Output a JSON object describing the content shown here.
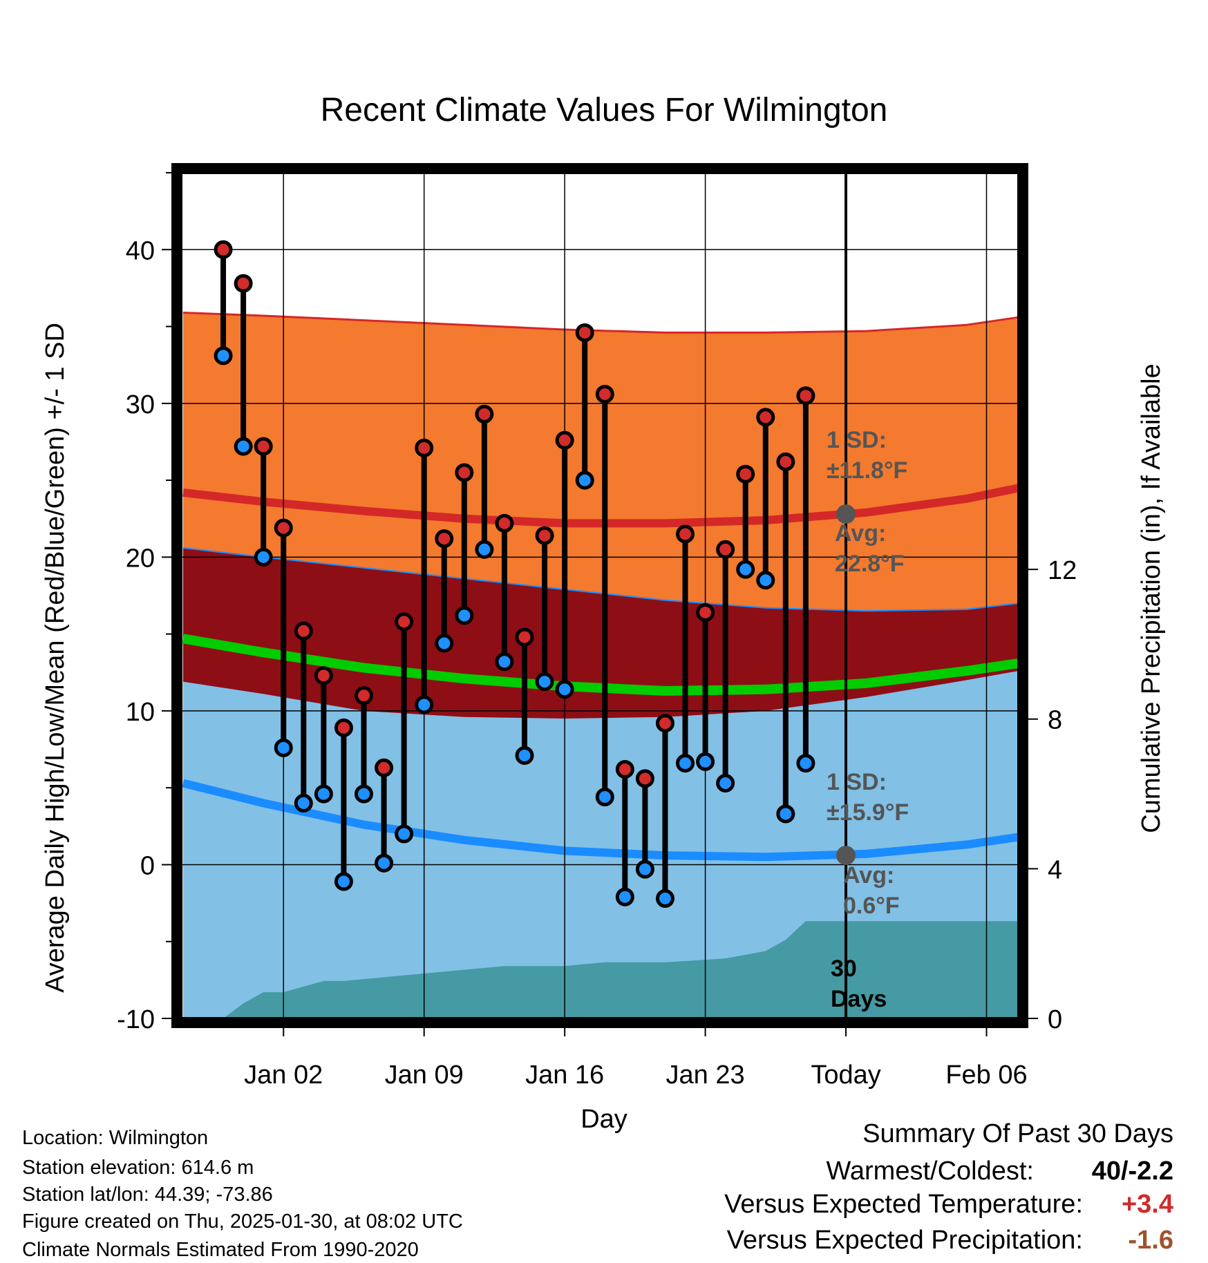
{
  "page": {
    "title": "Recent Climate Values For Wilmington"
  },
  "chart_data": {
    "type": "range",
    "title": "Recent Climate Values For Wilmington",
    "xlabel": "Day",
    "ylabel": "Average Daily High/Low/Mean (Red/Blue/Green) +/- 1 SD",
    "y2label": "Cumulative Precipitation (in), If Available",
    "ylim": [
      -10,
      45
    ],
    "y2lim": [
      0,
      22.6
    ],
    "xlim": [
      -3.1,
      38.6
    ],
    "yticks": [
      -10,
      0,
      10,
      20,
      30,
      40
    ],
    "y2ticks": [
      0,
      4,
      8,
      12
    ],
    "xticks": [
      {
        "day": 2,
        "label": "Jan 02"
      },
      {
        "day": 9,
        "label": "Jan 09"
      },
      {
        "day": 16,
        "label": "Jan 16"
      },
      {
        "day": 23,
        "label": "Jan 23"
      },
      {
        "day": 30,
        "label": "Today"
      },
      {
        "day": 37,
        "label": "Feb 06"
      }
    ],
    "today_day": 30,
    "observed": [
      {
        "day": -1,
        "high": 40.0,
        "low": 33.1
      },
      {
        "day": 0,
        "high": 37.8,
        "low": 27.2
      },
      {
        "day": 1,
        "high": 27.2,
        "low": 20.0
      },
      {
        "day": 2,
        "high": 21.9,
        "low": 7.6
      },
      {
        "day": 3,
        "high": 15.2,
        "low": 4.0
      },
      {
        "day": 4,
        "high": 12.3,
        "low": 4.6
      },
      {
        "day": 5,
        "high": 8.9,
        "low": -1.1
      },
      {
        "day": 6,
        "high": 11.0,
        "low": 4.6
      },
      {
        "day": 7,
        "high": 6.3,
        "low": 0.1
      },
      {
        "day": 8,
        "high": 15.8,
        "low": 2.0
      },
      {
        "day": 9,
        "high": 27.1,
        "low": 10.4
      },
      {
        "day": 10,
        "high": 21.2,
        "low": 14.4
      },
      {
        "day": 11,
        "high": 25.5,
        "low": 16.2
      },
      {
        "day": 12,
        "high": 29.3,
        "low": 20.5
      },
      {
        "day": 13,
        "high": 22.2,
        "low": 13.2
      },
      {
        "day": 14,
        "high": 14.8,
        "low": 7.1
      },
      {
        "day": 15,
        "high": 21.4,
        "low": 11.9
      },
      {
        "day": 16,
        "high": 27.6,
        "low": 11.4
      },
      {
        "day": 17,
        "high": 34.6,
        "low": 25.0
      },
      {
        "day": 18,
        "high": 30.6,
        "low": 4.4
      },
      {
        "day": 19,
        "high": 6.2,
        "low": -2.1
      },
      {
        "day": 20,
        "high": 5.6,
        "low": -0.3
      },
      {
        "day": 21,
        "high": 9.2,
        "low": -2.2
      },
      {
        "day": 22,
        "high": 21.5,
        "low": 6.6
      },
      {
        "day": 23,
        "high": 16.4,
        "low": 6.7
      },
      {
        "day": 24,
        "high": 20.5,
        "low": 5.3
      },
      {
        "day": 25,
        "high": 25.4,
        "low": 19.2
      },
      {
        "day": 26,
        "high": 29.1,
        "low": 18.5
      },
      {
        "day": 27,
        "high": 26.2,
        "low": 3.3
      },
      {
        "day": 28,
        "high": 30.5,
        "low": 6.6
      }
    ],
    "normals": {
      "days": [
        -3,
        1,
        6,
        11,
        16,
        21,
        26,
        31,
        36,
        38.6
      ],
      "high_mean": [
        24.2,
        23.6,
        23.0,
        22.5,
        22.2,
        22.2,
        22.4,
        22.9,
        23.8,
        24.5
      ],
      "high_upper": [
        35.9,
        35.7,
        35.4,
        35.1,
        34.8,
        34.6,
        34.6,
        34.7,
        35.1,
        35.6
      ],
      "high_lower": [
        20.6,
        20.0,
        19.3,
        18.6,
        17.9,
        17.2,
        16.7,
        16.5,
        16.6,
        17.0
      ],
      "mean_mean": [
        14.7,
        13.8,
        12.8,
        12.1,
        11.6,
        11.3,
        11.4,
        11.8,
        12.6,
        13.1
      ],
      "low_mean": [
        5.3,
        4.0,
        2.6,
        1.6,
        0.9,
        0.6,
        0.5,
        0.7,
        1.3,
        1.8
      ],
      "low_upper": [
        11.9,
        11.1,
        10.0,
        9.6,
        9.5,
        9.6,
        10.0,
        10.9,
        12.0,
        12.6
      ]
    },
    "precip_cumulative": {
      "days": [
        -3,
        -1,
        0,
        1,
        2,
        4,
        5,
        7,
        9,
        11,
        13,
        15,
        16,
        18,
        21,
        24,
        25,
        26,
        27,
        28,
        38.6
      ],
      "values": [
        0,
        0,
        0.4,
        0.7,
        0.7,
        1.0,
        1.0,
        1.1,
        1.2,
        1.3,
        1.4,
        1.4,
        1.4,
        1.5,
        1.5,
        1.6,
        1.7,
        1.8,
        2.1,
        2.6,
        2.6
      ]
    },
    "annotations": {
      "high_sd": [
        "1 SD:",
        "±11.8°F"
      ],
      "high_avg": [
        "Avg:",
        "22.8°F"
      ],
      "low_sd": [
        "1 SD:",
        "±15.9°F"
      ],
      "low_avg": [
        "Avg:",
        "0.6°F"
      ],
      "days_window": [
        "30",
        "Days"
      ],
      "high_avg_value": 22.8,
      "low_avg_value": 0.6
    },
    "colors": {
      "high_band": "#f37a2e",
      "high_line": "#d42828",
      "mean_band": "#8e0e15",
      "mean_line": "#00cc00",
      "low_band": "#82c0e6",
      "low_line": "#1a8cff",
      "precip": "#459aa3",
      "high_marker": "#d12b2b",
      "low_marker": "#1e90ff",
      "annotation": "#555555"
    }
  },
  "info": {
    "location": "Location: Wilmington",
    "elevation": "Station elevation: 614.6 m",
    "latlon": "Station lat/lon: 44.39; -73.86",
    "created": "Figure created on Thu, 2025-01-30, at 08:02 UTC",
    "normals": "Climate Normals Estimated From 1990-2020"
  },
  "summary": {
    "heading": "Summary Of Past 30 Days",
    "warmest_label": "Warmest/Coldest:",
    "warmest_value": "40/-2.2",
    "temp_label": "Versus Expected Temperature:",
    "temp_value": "+3.4",
    "temp_color": "#d12b2b",
    "precip_label": "Versus Expected Precipitation:",
    "precip_value": "-1.6",
    "precip_color": "#a0522d"
  }
}
